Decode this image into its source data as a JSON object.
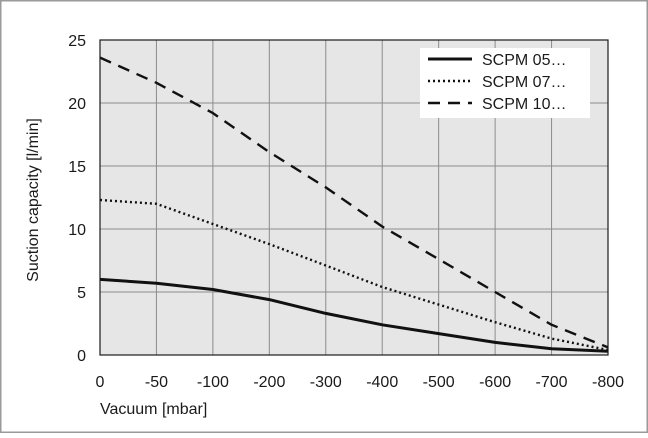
{
  "chart_data": {
    "type": "line",
    "xlabel": "Vacuum [mbar]",
    "ylabel": "Suction capacity [l/min]",
    "categories": [
      "0",
      "-50",
      "-100",
      "-200",
      "-300",
      "-400",
      "-500",
      "-600",
      "-700",
      "-800"
    ],
    "ylim": [
      0,
      25
    ],
    "yticks": [
      0,
      5,
      10,
      15,
      20,
      25
    ],
    "grid": true,
    "legend_position": "top-right",
    "series": [
      {
        "name": "SCPM 05…",
        "style": "solid",
        "values": [
          6.0,
          5.7,
          5.2,
          4.4,
          3.3,
          2.4,
          1.7,
          1.0,
          0.5,
          0.3
        ]
      },
      {
        "name": "SCPM 07…",
        "style": "dotted",
        "values": [
          12.3,
          12.0,
          10.4,
          8.8,
          7.1,
          5.4,
          4.0,
          2.6,
          1.3,
          0.4
        ]
      },
      {
        "name": "SCPM 10…",
        "style": "dashed",
        "values": [
          23.6,
          21.6,
          19.2,
          16.1,
          13.3,
          10.2,
          7.6,
          5.0,
          2.4,
          0.6
        ]
      }
    ]
  }
}
